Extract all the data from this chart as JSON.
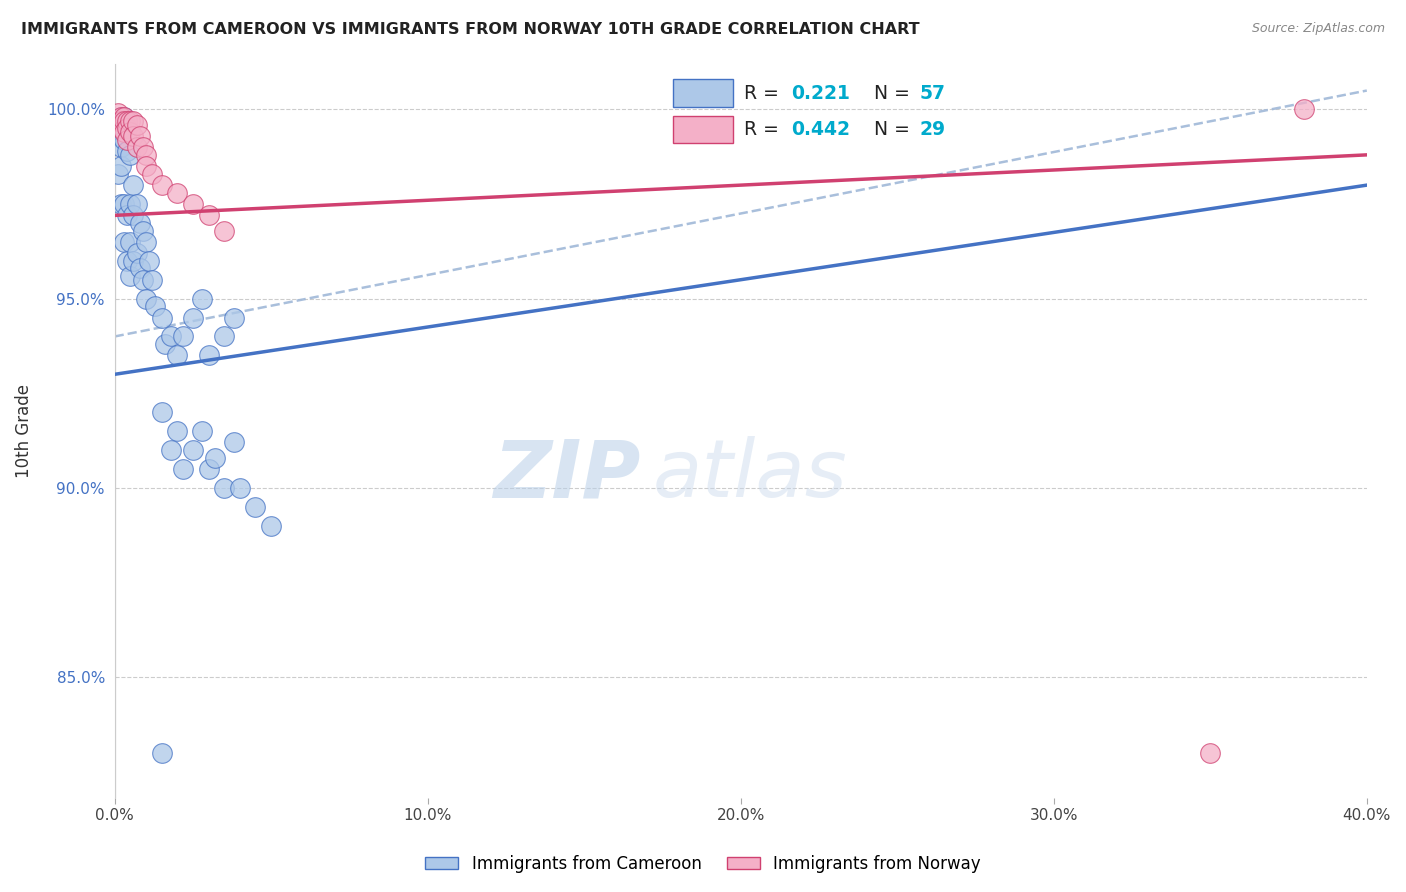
{
  "title": "IMMIGRANTS FROM CAMEROON VS IMMIGRANTS FROM NORWAY 10TH GRADE CORRELATION CHART",
  "source": "Source: ZipAtlas.com",
  "ylabel": "10th Grade",
  "y_tick_labels": [
    "100.0%",
    "95.0%",
    "90.0%",
    "85.0%"
  ],
  "y_tick_values": [
    1.0,
    0.95,
    0.9,
    0.85
  ],
  "x_range": [
    0.0,
    0.4
  ],
  "y_range": [
    0.818,
    1.012
  ],
  "r_cameroon": 0.221,
  "n_cameroon": 57,
  "r_norway": 0.442,
  "n_norway": 29,
  "color_cameroon_fill": "#adc8e8",
  "color_norway_fill": "#f4b0c8",
  "color_cameroon_line": "#4472c4",
  "color_norway_line": "#d04070",
  "color_dashed_line": "#a0b8d8",
  "legend_label_cameroon": "Immigrants from Cameroon",
  "legend_label_norway": "Immigrants from Norway",
  "watermark_zip": "ZIP",
  "watermark_atlas": "atlas",
  "cam_line_x0": 0.0,
  "cam_line_y0": 0.93,
  "cam_line_x1": 0.4,
  "cam_line_y1": 0.98,
  "nor_line_x0": 0.0,
  "nor_line_y0": 0.972,
  "nor_line_x1": 0.4,
  "nor_line_y1": 0.988,
  "dash_line_x0": 0.0,
  "dash_line_y0": 0.94,
  "dash_line_x1": 0.4,
  "dash_line_y1": 1.005,
  "cam_points_x": [
    0.001,
    0.001,
    0.001,
    0.002,
    0.002,
    0.002,
    0.002,
    0.003,
    0.003,
    0.003,
    0.003,
    0.004,
    0.004,
    0.004,
    0.004,
    0.005,
    0.005,
    0.005,
    0.005,
    0.006,
    0.006,
    0.006,
    0.007,
    0.007,
    0.008,
    0.008,
    0.009,
    0.009,
    0.01,
    0.01,
    0.011,
    0.012,
    0.013,
    0.015,
    0.016,
    0.018,
    0.02,
    0.022,
    0.025,
    0.028,
    0.03,
    0.035,
    0.038,
    0.015,
    0.02,
    0.025,
    0.03,
    0.035,
    0.04,
    0.045,
    0.05,
    0.018,
    0.022,
    0.028,
    0.032,
    0.038,
    0.015
  ],
  "cam_points_y": [
    0.997,
    0.993,
    0.983,
    0.998,
    0.99,
    0.985,
    0.975,
    0.998,
    0.992,
    0.975,
    0.965,
    0.997,
    0.989,
    0.972,
    0.96,
    0.988,
    0.975,
    0.965,
    0.956,
    0.98,
    0.972,
    0.96,
    0.975,
    0.962,
    0.97,
    0.958,
    0.968,
    0.955,
    0.965,
    0.95,
    0.96,
    0.955,
    0.948,
    0.945,
    0.938,
    0.94,
    0.935,
    0.94,
    0.945,
    0.95,
    0.935,
    0.94,
    0.945,
    0.92,
    0.915,
    0.91,
    0.905,
    0.9,
    0.9,
    0.895,
    0.89,
    0.91,
    0.905,
    0.915,
    0.908,
    0.912,
    0.83
  ],
  "nor_points_x": [
    0.001,
    0.001,
    0.002,
    0.002,
    0.002,
    0.003,
    0.003,
    0.003,
    0.004,
    0.004,
    0.004,
    0.005,
    0.005,
    0.006,
    0.006,
    0.007,
    0.007,
    0.008,
    0.009,
    0.01,
    0.01,
    0.012,
    0.015,
    0.02,
    0.025,
    0.03,
    0.035,
    0.38,
    0.35
  ],
  "nor_points_y": [
    0.999,
    0.997,
    0.998,
    0.997,
    0.995,
    0.998,
    0.997,
    0.994,
    0.997,
    0.995,
    0.992,
    0.997,
    0.994,
    0.997,
    0.993,
    0.996,
    0.99,
    0.993,
    0.99,
    0.988,
    0.985,
    0.983,
    0.98,
    0.978,
    0.975,
    0.972,
    0.968,
    1.0,
    0.83
  ]
}
